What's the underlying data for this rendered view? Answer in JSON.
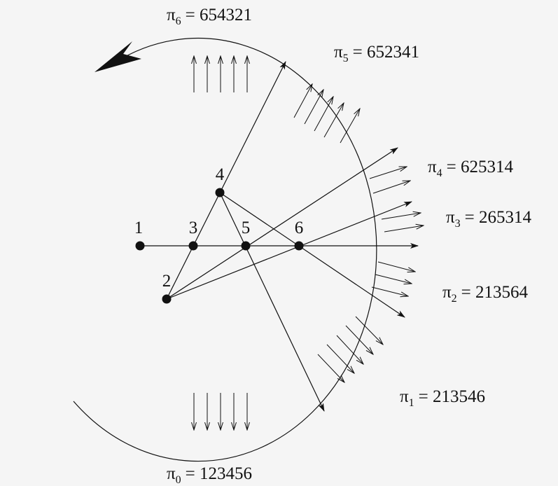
{
  "figure": {
    "points": [
      {
        "label": "1"
      },
      {
        "label": "2"
      },
      {
        "label": "3"
      },
      {
        "label": "4"
      },
      {
        "label": "5"
      },
      {
        "label": "6"
      }
    ],
    "permutations": [
      {
        "symbol": "π",
        "index": "0",
        "value": "= 123456"
      },
      {
        "symbol": "π",
        "index": "1",
        "value": "= 213546"
      },
      {
        "symbol": "π",
        "index": "2",
        "value": "= 213564"
      },
      {
        "symbol": "π",
        "index": "3",
        "value": "= 265314"
      },
      {
        "symbol": "π",
        "index": "4",
        "value": "= 625314"
      },
      {
        "symbol": "π",
        "index": "5",
        "value": "= 652341"
      },
      {
        "symbol": "π",
        "index": "6",
        "value": "= 654321"
      }
    ]
  }
}
